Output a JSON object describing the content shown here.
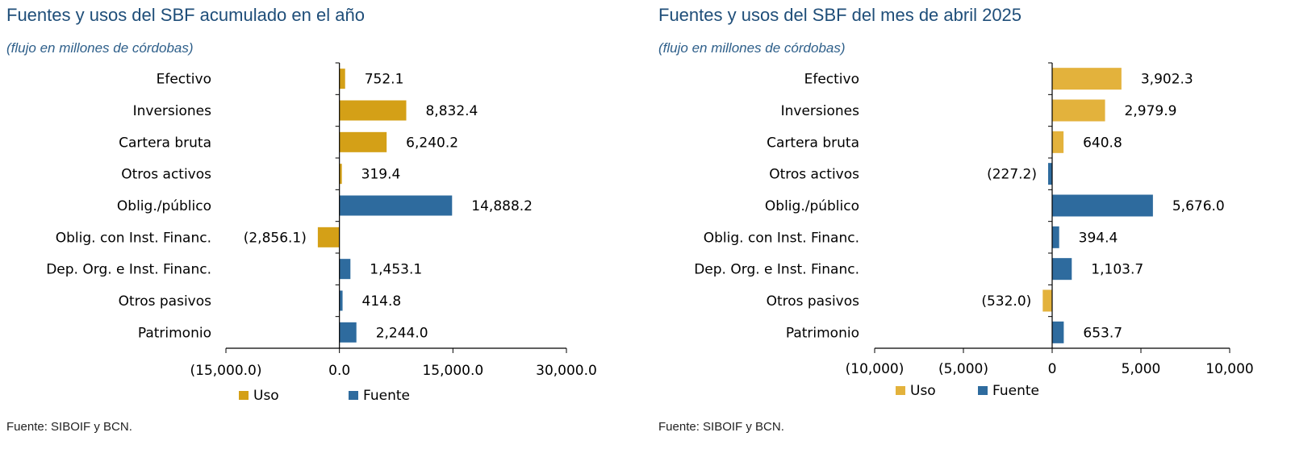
{
  "chart_data": [
    {
      "type": "bar",
      "orientation": "horizontal",
      "title": "Fuentes y usos del SBF acumulado en el año",
      "subtitle": "(flujo en millones de córdobas)",
      "categories": [
        "Efectivo",
        "Inversiones",
        "Cartera bruta",
        "Otros activos",
        "Oblig./público",
        "Oblig. con Inst. Financ.",
        "Dep. Org. e Inst. Financ.",
        "Otros pasivos",
        "Patrimonio"
      ],
      "series": [
        {
          "name": "Uso",
          "color": "#d4a017",
          "values": [
            752.1,
            8832.4,
            6240.2,
            319.4,
            null,
            -2856.1,
            null,
            null,
            null
          ]
        },
        {
          "name": "Fuente",
          "color": "#2e6b9e",
          "values": [
            null,
            null,
            null,
            null,
            14888.2,
            null,
            1453.1,
            414.8,
            2244.0
          ]
        }
      ],
      "data_labels": [
        "752.1",
        "8,832.4",
        "6,240.2",
        "319.4",
        "14,888.2",
        "(2,856.1)",
        "1,453.1",
        "414.8",
        "2,244.0"
      ],
      "xlim": [
        -15000,
        30000
      ],
      "xticks": [
        -15000,
        0,
        15000,
        30000
      ],
      "xtick_labels": [
        "(15,000.0)",
        "0.0",
        "15,000.0",
        "30,000.0"
      ],
      "legend": "bottom",
      "grid": false,
      "source": "Fuente: SIBOIF y BCN."
    },
    {
      "type": "bar",
      "orientation": "horizontal",
      "title": "Fuentes y usos del SBF del mes de abril 2025",
      "subtitle": "(flujo en millones de córdobas)",
      "categories": [
        "Efectivo",
        "Inversiones",
        "Cartera bruta",
        "Otros activos",
        "Oblig./público",
        "Oblig. con Inst. Financ.",
        "Dep. Org. e Inst. Financ.",
        "Otros pasivos",
        "Patrimonio"
      ],
      "series": [
        {
          "name": "Uso",
          "color": "#e3b23c",
          "values": [
            3902.3,
            2979.9,
            640.8,
            null,
            null,
            null,
            null,
            -532.0,
            null
          ]
        },
        {
          "name": "Fuente",
          "color": "#2e6b9e",
          "values": [
            null,
            null,
            null,
            -227.2,
            5676.0,
            394.4,
            1103.7,
            null,
            653.7
          ]
        }
      ],
      "data_labels": [
        "3,902.3",
        "2,979.9",
        "640.8",
        "(227.2)",
        "5,676.0",
        "394.4",
        "1,103.7",
        "(532.0)",
        "653.7"
      ],
      "xlim": [
        -10000,
        10000
      ],
      "xticks": [
        -10000,
        -5000,
        0,
        5000,
        10000
      ],
      "xtick_labels": [
        "(10,000)",
        "(5,000)",
        "0",
        "5,000",
        "10,000"
      ],
      "legend": "bottom",
      "grid": false,
      "source": "Fuente: SIBOIF y BCN."
    }
  ]
}
